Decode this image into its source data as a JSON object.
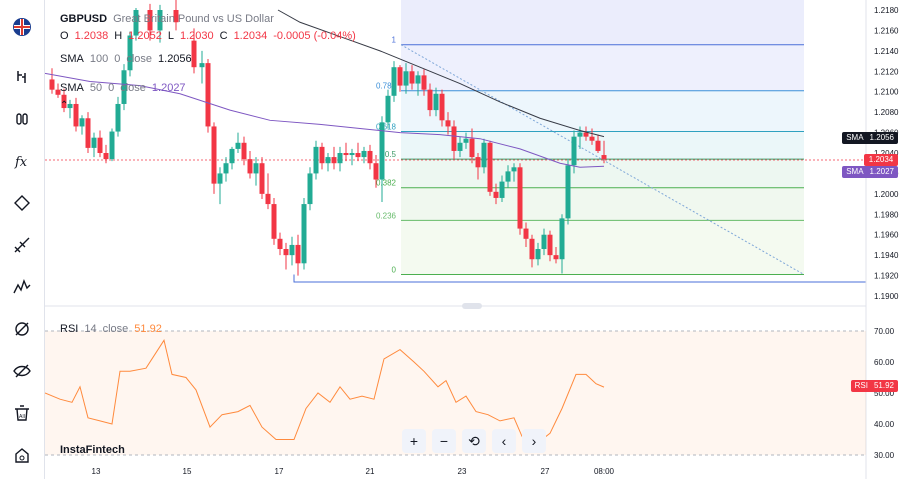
{
  "symbol": "GBPUSD",
  "description": "Great Britain Pound vs US Dollar",
  "ohlc": {
    "o_label": "O",
    "o": "1.2038",
    "h_label": "H",
    "h": "1.2052",
    "l_label": "L",
    "l": "1.2030",
    "c_label": "C",
    "c": "1.2034",
    "change": "-0.0005 (-0.04%)"
  },
  "sma1": {
    "name": "SMA",
    "period": "100",
    "offset": "0",
    "source": "close",
    "value": "1.2056"
  },
  "sma2": {
    "name": "SMA",
    "period": "50",
    "offset": "0",
    "source": "close",
    "value": "1.2027"
  },
  "rsi": {
    "name": "RSI",
    "period": "14",
    "source": "close",
    "value": "51.92"
  },
  "price_axis": [
    "1.2180",
    "1.2160",
    "1.2140",
    "1.2120",
    "1.2100",
    "1.2080",
    "1.2060",
    "1.2040",
    "1.2020",
    "1.2000",
    "1.1980",
    "1.1960",
    "1.1940",
    "1.1920",
    "1.1900"
  ],
  "rsi_axis": [
    "70.00",
    "60.00",
    "50.00",
    "40.00",
    "30.00"
  ],
  "time_axis": [
    "13",
    "15",
    "17",
    "21",
    "23",
    "27",
    "08:00"
  ],
  "fib_levels": [
    "1",
    "0.786",
    "0.618",
    "0.5",
    "0.382",
    "0.236",
    "0"
  ],
  "tags": {
    "sma100": {
      "name": "SMA",
      "value": "1.2056",
      "color": "#131722"
    },
    "price": {
      "value": "1.2034",
      "color": "#f23645"
    },
    "sma50": {
      "name": "SMA",
      "value": "1.2027",
      "color": "#7e57c2"
    },
    "rsi": {
      "name": "RSI",
      "value": "51.92",
      "color": "#f23645"
    }
  },
  "brand": "InstaFintech",
  "colors": {
    "up": "#22ab94",
    "down": "#f23645",
    "sma100": "#363a45",
    "sma50": "#7e57c2",
    "rsi": "#ff8a3d"
  },
  "toolbar_icons": [
    "gbpusd-flag-icon",
    "cursor-icon",
    "trend-line-icon",
    "fib-icon",
    "text-icon",
    "pattern-icon",
    "prediction-icon",
    "measure-icon",
    "magnet-icon",
    "eye-off-icon",
    "trash-icon",
    "home-icon"
  ],
  "nav": [
    "zoom-in",
    "zoom-out",
    "reset",
    "scroll-left",
    "scroll-right"
  ]
}
